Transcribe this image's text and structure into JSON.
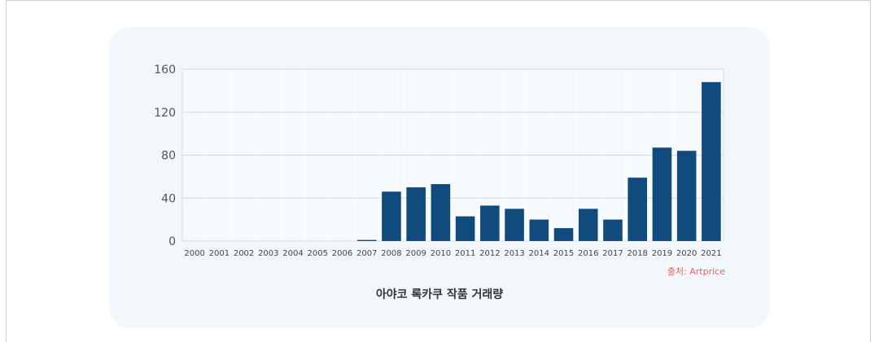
{
  "chart_data": {
    "type": "bar",
    "categories": [
      "2000",
      "2001",
      "2002",
      "2003",
      "2004",
      "2005",
      "2006",
      "2007",
      "2008",
      "2009",
      "2010",
      "2011",
      "2012",
      "2013",
      "2014",
      "2015",
      "2016",
      "2017",
      "2018",
      "2019",
      "2020",
      "2021"
    ],
    "values": [
      0,
      0,
      0,
      0,
      0,
      0,
      0,
      1,
      46,
      50,
      53,
      23,
      33,
      30,
      20,
      12,
      30,
      20,
      59,
      87,
      84,
      148
    ],
    "yticks": [
      0,
      40,
      80,
      120,
      160
    ],
    "ylim": [
      0,
      160
    ],
    "bar_color": "#114a7c",
    "grid": true,
    "source": "출처: Artprice",
    "title": "아야코 록카쿠 작품 거래량"
  }
}
